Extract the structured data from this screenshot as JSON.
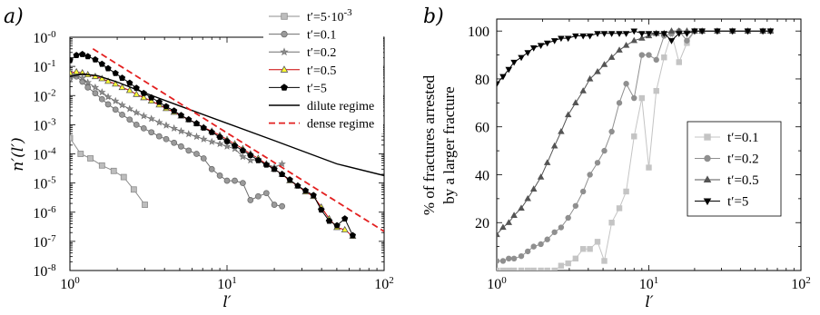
{
  "chart_data": [
    {
      "type": "line",
      "panel_label": "a)",
      "xlabel": "l′",
      "ylabel": "n′(l′)",
      "xscale": "log",
      "yscale": "log",
      "xlim": [
        1,
        100
      ],
      "ylim": [
        1e-08,
        1
      ],
      "x_ticks": [
        {
          "base": "10",
          "exp": "0"
        },
        {
          "base": "10",
          "exp": "1"
        },
        {
          "base": "10",
          "exp": "2"
        }
      ],
      "y_ticks": [
        {
          "base": "10",
          "exp": "-8"
        },
        {
          "base": "10",
          "exp": "-7"
        },
        {
          "base": "10",
          "exp": "-6"
        },
        {
          "base": "10",
          "exp": "-5"
        },
        {
          "base": "10",
          "exp": "-4"
        },
        {
          "base": "10",
          "exp": "-3"
        },
        {
          "base": "10",
          "exp": "-2"
        },
        {
          "base": "10",
          "exp": "-1"
        },
        {
          "base": "10",
          "exp": "-0"
        }
      ],
      "legend_position": "top-right",
      "series": [
        {
          "name": "t′=5·10",
          "name_sup": "-3",
          "color": "#8c8c8c",
          "fill": "#bdbdbd",
          "marker": "square",
          "x": [
            1.0,
            1.17,
            1.35,
            1.6,
            1.9,
            2.2,
            2.55,
            3.0
          ],
          "y": [
            0.00035,
            0.0001,
            7e-05,
            4e-05,
            2.6e-05,
            1.6e-05,
            6e-06,
            1.8e-06
          ]
        },
        {
          "name": "t′=0.1",
          "color": "#6e6e6e",
          "fill": "#9a9a9a",
          "marker": "circle",
          "x": [
            1.0,
            1.1,
            1.2,
            1.3,
            1.45,
            1.6,
            1.75,
            1.95,
            2.15,
            2.4,
            2.65,
            2.95,
            3.3,
            3.7,
            4.1,
            4.6,
            5.1,
            5.7,
            6.4,
            7.1,
            8.0,
            9.0,
            10.0,
            11.2,
            12.6,
            14.1,
            15.8,
            17.8,
            20.0,
            22.4
          ],
          "y": [
            0.04,
            0.045,
            0.03,
            0.019,
            0.012,
            0.0075,
            0.005,
            0.0033,
            0.0022,
            0.0015,
            0.001,
            0.00075,
            0.00055,
            0.0004,
            0.00032,
            0.00024,
            0.00018,
            0.00013,
            0.0001,
            7e-05,
            3e-05,
            1.8e-05,
            1.2e-05,
            1.2e-05,
            1e-05,
            2.6e-06,
            3.5e-06,
            4.5e-06,
            1.8e-06,
            1.6e-06
          ]
        },
        {
          "name": "t′=0.2",
          "color": "#6e6e6e",
          "fill": "#8c8c8c",
          "marker": "star",
          "x": [
            1.0,
            1.1,
            1.2,
            1.3,
            1.45,
            1.6,
            1.75,
            1.95,
            2.15,
            2.4,
            2.65,
            2.95,
            3.3,
            3.7,
            4.1,
            4.6,
            5.1,
            5.7,
            6.4,
            7.1,
            8.0,
            9.0,
            10.0,
            11.2,
            12.6,
            14.1,
            15.8,
            17.8,
            20.0,
            22.4
          ],
          "y": [
            0.045,
            0.05,
            0.04,
            0.028,
            0.019,
            0.013,
            0.009,
            0.0065,
            0.0047,
            0.0035,
            0.0026,
            0.002,
            0.0016,
            0.0012,
            0.00095,
            0.00075,
            0.0006,
            0.00048,
            0.00039,
            0.00032,
            0.00026,
            0.00022,
            0.00018,
            0.00015,
            8e-05,
            6e-05,
            6.5e-05,
            4.5e-05,
            3.5e-05,
            4.5e-05
          ]
        },
        {
          "name": "t′=0.5",
          "color": "#cc0000",
          "fill": "#ffff33",
          "marker": "triangle",
          "x": [
            1.0,
            1.1,
            1.2,
            1.3,
            1.45,
            1.6,
            1.75,
            1.95,
            2.15,
            2.4,
            2.65,
            2.95,
            3.3,
            3.7,
            4.1,
            4.6,
            5.1,
            5.7,
            6.4,
            7.1,
            8.0,
            9.0,
            10.0,
            11.2,
            12.6,
            14.1,
            15.8,
            17.8,
            20.0,
            22.4,
            25.1,
            28.2,
            31.6,
            35.5,
            39.8,
            44.7,
            50.1,
            56.2,
            63.1
          ],
          "y": [
            0.06,
            0.065,
            0.06,
            0.052,
            0.045,
            0.038,
            0.031,
            0.025,
            0.019,
            0.015,
            0.011,
            0.0085,
            0.0065,
            0.0048,
            0.0036,
            0.0027,
            0.002,
            0.0015,
            0.0011,
            0.0008,
            0.0006,
            0.00043,
            0.00031,
            0.00022,
            0.00015,
            0.0001,
            7e-05,
            4.5e-05,
            3e-05,
            2e-05,
            1.2e-05,
            8e-06,
            5e-06,
            3.5e-06,
            1.5e-06,
            6e-07,
            3e-07,
            2.5e-07,
            1.5e-07
          ]
        },
        {
          "name": "t′=5",
          "color": "#000000",
          "fill": "#000000",
          "marker": "pentagon",
          "x": [
            1.0,
            1.1,
            1.2,
            1.3,
            1.45,
            1.6,
            1.75,
            1.95,
            2.15,
            2.4,
            2.65,
            2.95,
            3.3,
            3.7,
            4.1,
            4.6,
            5.1,
            5.7,
            6.4,
            7.1,
            8.0,
            9.0,
            10.0,
            11.2,
            12.6,
            14.1,
            15.8,
            17.8,
            20.0,
            22.4,
            25.1,
            28.2,
            31.6,
            35.5,
            39.8,
            44.7,
            50.1,
            56.2,
            63.1
          ],
          "y": [
            0.16,
            0.24,
            0.26,
            0.22,
            0.17,
            0.12,
            0.085,
            0.058,
            0.04,
            0.027,
            0.018,
            0.012,
            0.0085,
            0.006,
            0.0042,
            0.003,
            0.0021,
            0.0015,
            0.0011,
            0.00078,
            0.00055,
            0.00038,
            0.00027,
            0.00019,
            0.00013,
            9e-05,
            6e-05,
            4.2e-05,
            3e-05,
            2e-05,
            1.3e-05,
            8e-06,
            5.5e-06,
            3.8e-06,
            1.2e-06,
            5e-07,
            3.5e-07,
            6e-07,
            1.6e-07
          ]
        },
        {
          "name": "dilute regime",
          "color": "#000000",
          "marker": "none",
          "style": "solid",
          "x": [
            1.0,
            1.2,
            1.5,
            2.0,
            3.0,
            5.0,
            10.0,
            20.0,
            50.0,
            100.0
          ],
          "y": [
            0.045,
            0.055,
            0.048,
            0.029,
            0.0123,
            0.0044,
            0.00112,
            0.000284,
            4.55e-05,
            1.8e-05
          ]
        },
        {
          "name": "dense regime",
          "color": "#e32020",
          "marker": "none",
          "style": "dashed",
          "x": [
            1.4,
            100.0
          ],
          "y": [
            0.4,
            2.2e-07
          ]
        }
      ]
    },
    {
      "type": "line",
      "panel_label": "b)",
      "xlabel": "l′",
      "ylabel": "% of fractures arrested",
      "ylabel_line2": "by a larger fracture",
      "xscale": "log",
      "xlim": [
        1,
        100
      ],
      "ylim": [
        0,
        105
      ],
      "x_ticks": [
        {
          "base": "10",
          "exp": "0"
        },
        {
          "base": "10",
          "exp": "1"
        },
        {
          "base": "10",
          "exp": "2"
        }
      ],
      "y_ticks": [
        20,
        40,
        60,
        80,
        100
      ],
      "legend_position": "center-right",
      "series": [
        {
          "name": "t′=0.1",
          "color": "#c4c4c4",
          "fill": "#c4c4c4",
          "marker": "square",
          "x": [
            1.0,
            1.1,
            1.2,
            1.3,
            1.45,
            1.6,
            1.75,
            1.95,
            2.15,
            2.4,
            2.65,
            2.95,
            3.3,
            3.7,
            4.1,
            4.6,
            5.1,
            5.7,
            6.4,
            7.1,
            8.0,
            9.0,
            10.0,
            11.2,
            12.6,
            14.1,
            15.8,
            17.8,
            20.0,
            22.4,
            28.2,
            35.5,
            44.7,
            56.2,
            63.1
          ],
          "y": [
            0,
            0,
            0,
            0,
            0,
            0,
            0,
            0,
            0,
            0,
            2,
            3,
            5,
            9,
            9,
            12,
            4,
            20,
            26,
            33,
            56,
            72,
            43,
            75,
            89,
            99,
            87,
            95,
            100,
            100,
            100,
            100,
            100,
            100,
            100
          ]
        },
        {
          "name": "t′=0.2",
          "color": "#8f8f8f",
          "fill": "#8f8f8f",
          "marker": "circle",
          "x": [
            1.0,
            1.1,
            1.2,
            1.3,
            1.45,
            1.6,
            1.75,
            1.95,
            2.15,
            2.4,
            2.65,
            2.95,
            3.3,
            3.7,
            4.1,
            4.6,
            5.1,
            5.7,
            6.4,
            7.1,
            8.0,
            9.0,
            10.0,
            11.2,
            12.6,
            14.1,
            15.8,
            17.8,
            20.0,
            22.4,
            28.2,
            35.5,
            44.7,
            56.2,
            63.1
          ],
          "y": [
            4,
            4,
            5,
            5,
            6,
            8,
            10,
            11,
            13,
            16,
            18,
            22,
            27,
            33,
            40,
            45,
            50,
            58,
            70,
            78,
            72,
            90,
            90,
            88,
            98,
            99,
            100,
            96,
            100,
            100,
            100,
            100,
            100,
            100,
            100
          ]
        },
        {
          "name": "t′=0.5",
          "color": "#545454",
          "fill": "#545454",
          "marker": "triangle",
          "x": [
            1.0,
            1.1,
            1.2,
            1.3,
            1.45,
            1.6,
            1.75,
            1.95,
            2.15,
            2.4,
            2.65,
            2.95,
            3.3,
            3.7,
            4.1,
            4.6,
            5.1,
            5.7,
            6.4,
            7.1,
            8.0,
            9.0,
            10.0,
            11.2,
            12.6,
            14.1,
            15.8,
            17.8,
            20.0,
            22.4,
            28.2,
            35.5,
            44.7,
            56.2,
            63.1
          ],
          "y": [
            15,
            18,
            20,
            23,
            26,
            30,
            34,
            39,
            45,
            52,
            58,
            65,
            70,
            75,
            80,
            83,
            86,
            89,
            92,
            94,
            96,
            97,
            98,
            99,
            99,
            100,
            100,
            100,
            100,
            100,
            100,
            100,
            100,
            100,
            100
          ]
        },
        {
          "name": "t′=5",
          "color": "#000000",
          "fill": "#000000",
          "marker": "invtriangle",
          "x": [
            1.0,
            1.1,
            1.2,
            1.3,
            1.45,
            1.6,
            1.75,
            1.95,
            2.15,
            2.4,
            2.65,
            2.95,
            3.3,
            3.7,
            4.1,
            4.6,
            5.1,
            5.7,
            6.4,
            7.1,
            8.0,
            9.0,
            10.0,
            11.2,
            12.6,
            14.1,
            15.8,
            17.8,
            20.0,
            22.4,
            28.2,
            35.5,
            44.7,
            56.2,
            63.1
          ],
          "y": [
            78,
            81,
            84,
            87,
            89,
            91,
            93,
            94,
            95,
            96,
            97,
            97,
            98,
            98,
            98,
            99,
            99,
            99,
            99,
            99,
            100,
            99,
            99,
            99,
            99,
            96,
            99,
            99,
            100,
            100,
            100,
            100,
            100,
            100,
            100
          ]
        }
      ]
    }
  ]
}
